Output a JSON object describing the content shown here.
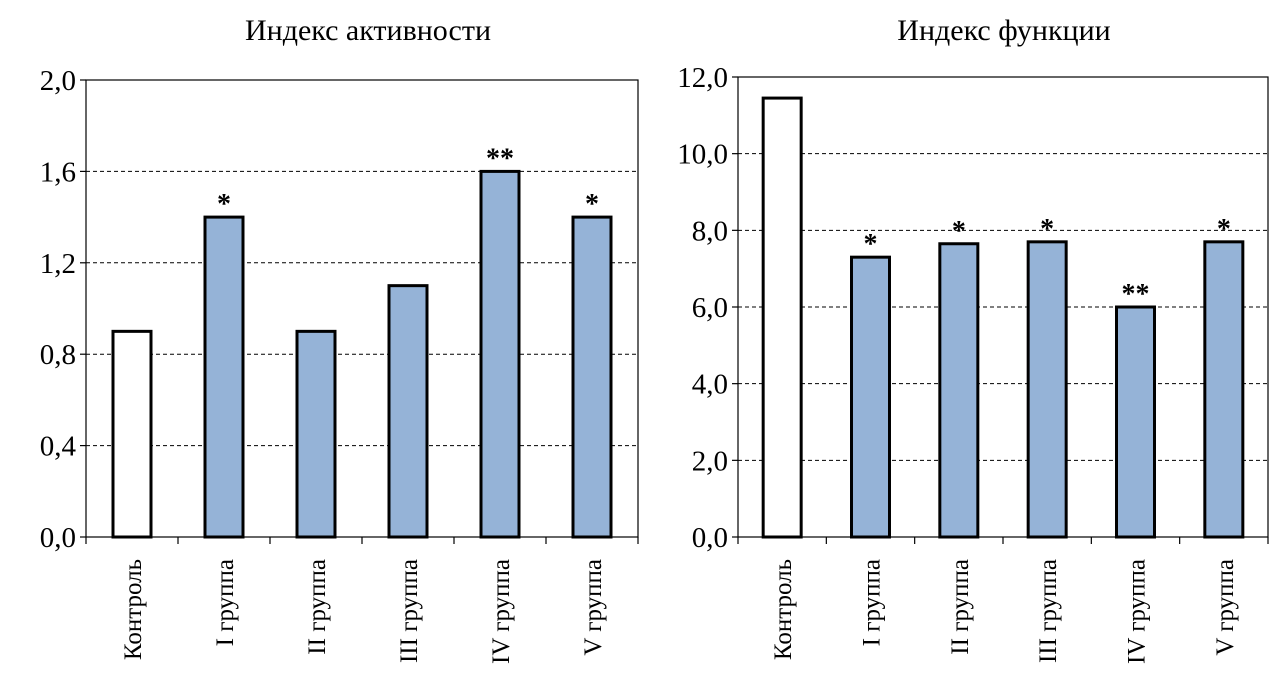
{
  "chart_data": [
    {
      "type": "bar",
      "title": "Индекс активности",
      "categories": [
        "Контроль",
        "I группа",
        "II группа",
        "III группа",
        "IV группа",
        "V группа"
      ],
      "values": [
        0.9,
        1.4,
        0.9,
        1.1,
        1.6,
        1.4
      ],
      "annotations": [
        "",
        "*",
        "",
        "",
        "**",
        "*"
      ],
      "ylim": [
        0,
        2.0
      ],
      "yticks": [
        "0,0",
        "0,4",
        "0,8",
        "1,2",
        "1,6",
        "2,0"
      ],
      "grid": "horizontal dashed",
      "legend": "none",
      "colors": {
        "control": "#ffffff",
        "group": "#95b3d7",
        "outline": "#000000"
      }
    },
    {
      "type": "bar",
      "title": "Индекс функции",
      "categories": [
        "Контроль",
        "I группа",
        "II группа",
        "III группа",
        "IV группа",
        "V группа"
      ],
      "values": [
        11.45,
        7.3,
        7.65,
        7.7,
        6.0,
        7.7
      ],
      "annotations": [
        "",
        "*",
        "*",
        "*",
        "**",
        "*"
      ],
      "ylim": [
        0,
        12.0
      ],
      "yticks": [
        "0,0",
        "2,0",
        "4,0",
        "6,0",
        "8,0",
        "10,0",
        "12,0"
      ],
      "grid": "horizontal dashed",
      "legend": "none",
      "colors": {
        "control": "#ffffff",
        "group": "#95b3d7",
        "outline": "#000000"
      }
    }
  ]
}
